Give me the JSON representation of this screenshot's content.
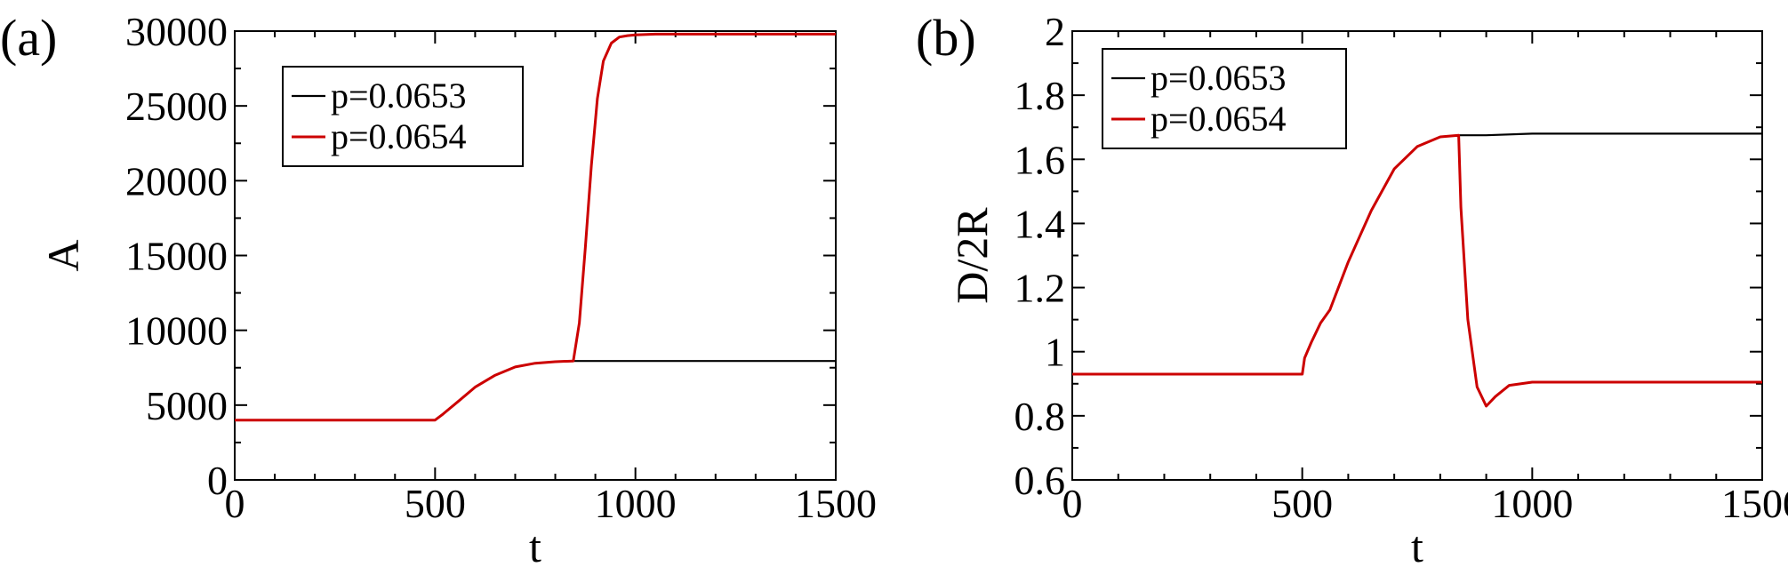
{
  "chart_data": [
    {
      "panel_label": "(a)",
      "type": "line",
      "xlabel": "t",
      "ylabel": "A",
      "xlim": [
        0,
        1500
      ],
      "ylim": [
        0,
        30000
      ],
      "x_ticks": [
        0,
        500,
        1000,
        1500
      ],
      "x_tick_labels": [
        "0",
        "500",
        "1000",
        "1500"
      ],
      "y_ticks": [
        0,
        5000,
        10000,
        15000,
        20000,
        25000,
        30000
      ],
      "y_tick_labels": [
        "0",
        "5000",
        "10000",
        "15000",
        "20000",
        "25000",
        "30000"
      ],
      "grid": false,
      "legend_position": "top-left",
      "series": [
        {
          "name": "p=0.0653",
          "color": "#000000",
          "x": [
            0,
            500,
            520,
            560,
            600,
            650,
            700,
            750,
            800,
            845,
            900,
            1000,
            1200,
            1500
          ],
          "y": [
            4000,
            4000,
            4400,
            5300,
            6200,
            7000,
            7550,
            7800,
            7900,
            7950,
            7950,
            7950,
            7950,
            7950
          ]
        },
        {
          "name": "p=0.0654",
          "color": "#cc0000",
          "x": [
            0,
            500,
            520,
            560,
            600,
            650,
            700,
            750,
            800,
            845,
            860,
            875,
            890,
            905,
            920,
            940,
            960,
            980,
            1000,
            1050,
            1200,
            1500
          ],
          "y": [
            4000,
            4000,
            4400,
            5300,
            6200,
            7000,
            7550,
            7800,
            7900,
            7950,
            10500,
            15500,
            21000,
            25500,
            28000,
            29200,
            29600,
            29700,
            29750,
            29800,
            29800,
            29800
          ]
        }
      ]
    },
    {
      "panel_label": "(b)",
      "type": "line",
      "xlabel": "t",
      "ylabel": "D/2R",
      "xlim": [
        0,
        1500
      ],
      "ylim": [
        0.6,
        2
      ],
      "x_ticks": [
        0,
        500,
        1000,
        1500
      ],
      "x_tick_labels": [
        "0",
        "500",
        "1000",
        "1500"
      ],
      "y_ticks": [
        0.6,
        0.8,
        1,
        1.2,
        1.4,
        1.6,
        1.8,
        2
      ],
      "y_tick_labels": [
        "0.6",
        "0.8",
        "1",
        "1.2",
        "1.4",
        "1.6",
        "1.8",
        "2"
      ],
      "grid": false,
      "legend_position": "top-left",
      "series": [
        {
          "name": "p=0.0653",
          "color": "#000000",
          "x": [
            0,
            500,
            505,
            520,
            540,
            560,
            600,
            650,
            700,
            750,
            800,
            840,
            900,
            1000,
            1200,
            1500
          ],
          "y": [
            0.93,
            0.93,
            0.98,
            1.03,
            1.09,
            1.13,
            1.28,
            1.44,
            1.57,
            1.64,
            1.67,
            1.675,
            1.675,
            1.68,
            1.68,
            1.68
          ]
        },
        {
          "name": "p=0.0654",
          "color": "#cc0000",
          "x": [
            0,
            500,
            505,
            520,
            540,
            560,
            600,
            650,
            700,
            750,
            800,
            840,
            845,
            860,
            880,
            900,
            920,
            950,
            1000,
            1100,
            1500
          ],
          "y": [
            0.93,
            0.93,
            0.98,
            1.03,
            1.09,
            1.13,
            1.28,
            1.44,
            1.57,
            1.64,
            1.67,
            1.675,
            1.45,
            1.1,
            0.89,
            0.83,
            0.86,
            0.895,
            0.905,
            0.905,
            0.905
          ]
        }
      ]
    }
  ]
}
